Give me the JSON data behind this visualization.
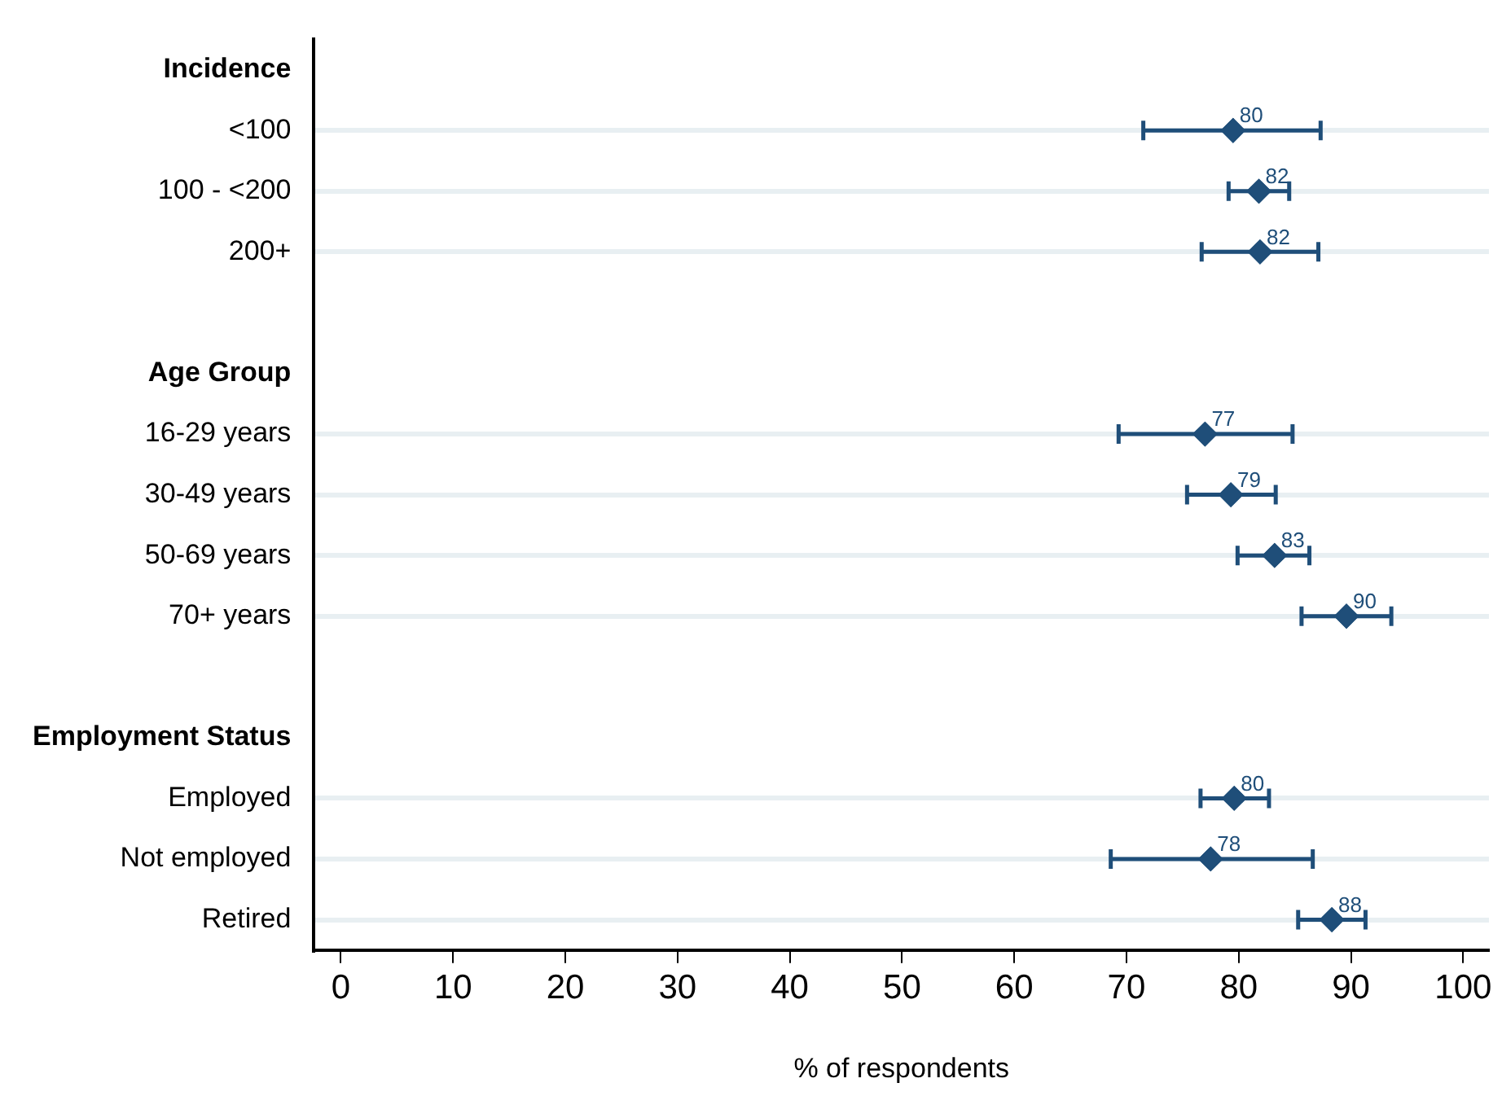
{
  "chart_data": {
    "type": "scatter",
    "orientation": "horizontal",
    "xlabel": "% of respondents",
    "categories": [
      "Incidence",
      "<100",
      "100 - <200",
      "200+",
      null,
      "Age Group",
      "16-29 years",
      "30-49 years",
      "50-69 years",
      "70+ years",
      null,
      "Employment Status",
      "Employed",
      "Not employed",
      "Retired"
    ],
    "values": [
      null,
      79.5,
      81.8,
      81.9,
      null,
      null,
      77.0,
      79.3,
      83.2,
      89.6,
      null,
      null,
      79.6,
      77.5,
      88.3
    ],
    "errors": [
      null,
      [
        71.5,
        87.3
      ],
      [
        79.1,
        84.5
      ],
      [
        76.7,
        87.1
      ],
      null,
      null,
      [
        69.3,
        84.8
      ],
      [
        75.4,
        83.3
      ],
      [
        79.9,
        86.3
      ],
      [
        85.6,
        93.6
      ],
      null,
      null,
      [
        76.6,
        82.7
      ],
      [
        68.6,
        86.6
      ],
      [
        85.3,
        91.3
      ]
    ],
    "value_labels": [
      null,
      "80",
      "82",
      "82",
      null,
      null,
      "77",
      "79",
      "83",
      "90",
      null,
      null,
      "80",
      "78",
      "88"
    ],
    "color": "#1f4e79",
    "marker": "diamond",
    "grid": "y",
    "xlim": [
      -2.4,
      102.3
    ],
    "xticks": [
      0,
      10,
      20,
      30,
      40,
      50,
      60,
      70,
      80,
      90,
      100
    ]
  }
}
